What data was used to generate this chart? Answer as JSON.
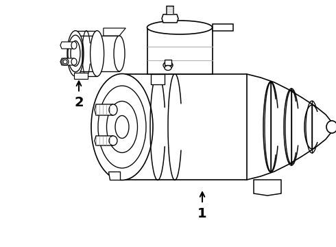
{
  "background_color": "#ffffff",
  "line_color": "#000000",
  "line_color_light": "#aaaaaa",
  "label_1": "1",
  "label_2": "2",
  "fig_width": 4.9,
  "fig_height": 3.6,
  "dpi": 100
}
